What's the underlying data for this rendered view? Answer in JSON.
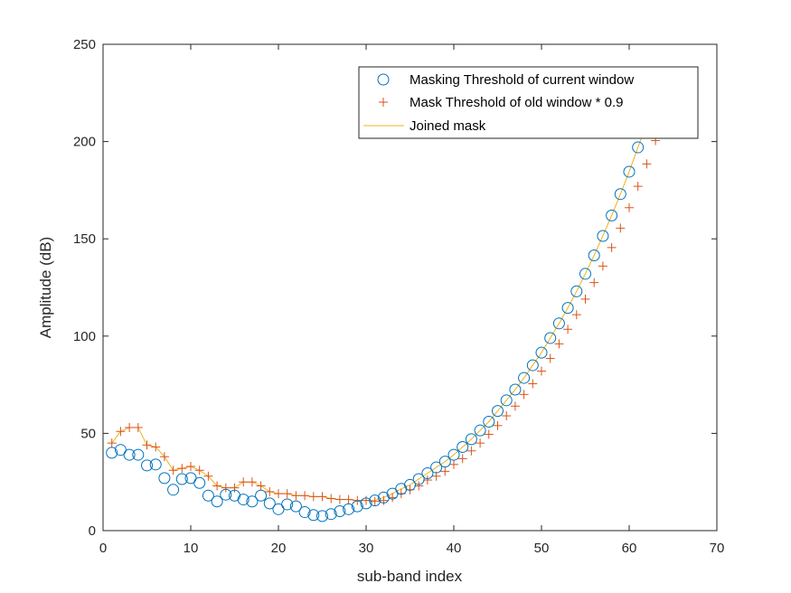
{
  "colors": {
    "circle": "#0072BD",
    "plus": "#D95319",
    "joined": "#EDB120",
    "axis": "#262626"
  },
  "chart_data": {
    "type": "scatter",
    "title": "",
    "xlabel": "sub-band index",
    "ylabel": "Amplitude (dB)",
    "xlim": [
      0,
      70
    ],
    "ylim": [
      0,
      250
    ],
    "xticks": [
      0,
      10,
      20,
      30,
      40,
      50,
      60,
      70
    ],
    "yticks": [
      0,
      50,
      100,
      150,
      200,
      250
    ],
    "grid": false,
    "legend_position": "top-right",
    "series": [
      {
        "name": "Masking Threshold of current window",
        "marker": "circle",
        "x": [
          1,
          2,
          3,
          4,
          5,
          6,
          7,
          8,
          9,
          10,
          11,
          12,
          13,
          14,
          15,
          16,
          17,
          18,
          19,
          20,
          21,
          22,
          23,
          24,
          25,
          26,
          27,
          28,
          29,
          30,
          31,
          32,
          33,
          34,
          35,
          36,
          37,
          38,
          39,
          40,
          41,
          42,
          43,
          44,
          45,
          46,
          47,
          48,
          49,
          50,
          51,
          52,
          53,
          54,
          55,
          56,
          57,
          58,
          59,
          60,
          61,
          62,
          63
        ],
        "y": [
          40,
          41.5,
          39,
          39,
          33.5,
          34,
          27,
          21,
          26.5,
          27,
          24.5,
          18,
          15,
          18.5,
          18,
          16,
          15,
          18,
          14,
          11,
          13.5,
          12.5,
          9.5,
          8,
          7.5,
          8.5,
          10,
          11,
          12.5,
          14,
          15.5,
          17,
          19,
          21.5,
          23.5,
          26.5,
          29.5,
          32.5,
          35.5,
          39,
          43,
          47,
          51.5,
          56,
          61.5,
          67,
          72.5,
          78.5,
          85,
          91.5,
          99,
          106.5,
          114.5,
          123,
          132,
          141.5,
          151.5,
          162,
          173,
          184.5,
          197,
          209,
          222
        ]
      },
      {
        "name": "Mask Threshold of old window * 0.9",
        "marker": "plus",
        "x": [
          1,
          2,
          3,
          4,
          5,
          6,
          7,
          8,
          9,
          10,
          11,
          12,
          13,
          14,
          15,
          16,
          17,
          18,
          19,
          20,
          21,
          22,
          23,
          24,
          25,
          26,
          27,
          28,
          29,
          30,
          31,
          32,
          33,
          34,
          35,
          36,
          37,
          38,
          39,
          40,
          41,
          42,
          43,
          44,
          45,
          46,
          47,
          48,
          49,
          50,
          51,
          52,
          53,
          54,
          55,
          56,
          57,
          58,
          59,
          60,
          61,
          62,
          63
        ],
        "y": [
          45,
          51,
          53,
          53,
          44,
          43,
          38,
          31,
          32,
          33,
          31,
          28,
          23,
          22,
          22,
          25,
          25,
          23,
          20,
          19,
          19,
          18,
          18,
          17.5,
          17.5,
          16.5,
          16,
          16,
          15.5,
          15.5,
          15,
          15.5,
          17,
          19,
          21,
          23,
          26,
          28,
          30.5,
          34,
          37,
          41,
          45,
          49.5,
          54,
          59,
          64,
          70,
          75.5,
          82,
          88.5,
          96,
          103.5,
          111,
          119,
          127.5,
          136,
          145.5,
          155.5,
          166,
          177,
          188.5,
          200.5
        ]
      },
      {
        "name": "Joined mask",
        "marker": "line",
        "x": [
          1,
          2,
          3,
          4,
          5,
          6,
          7,
          8,
          9,
          10,
          11,
          12,
          13,
          14,
          15,
          16,
          17,
          18,
          19,
          20,
          21,
          22,
          23,
          24,
          25,
          26,
          27,
          28,
          29,
          30,
          31,
          32,
          33,
          34,
          35,
          36,
          37,
          38,
          39,
          40,
          41,
          42,
          43,
          44,
          45,
          46,
          47,
          48,
          49,
          50,
          51,
          52,
          53,
          54,
          55,
          56,
          57,
          58,
          59,
          60,
          61,
          62,
          63
        ],
        "y": [
          45,
          51,
          53,
          53,
          44,
          43,
          38,
          31,
          32,
          33,
          31,
          28,
          23,
          22,
          22,
          25,
          25,
          23,
          20,
          19,
          19,
          18,
          18,
          17.5,
          17.5,
          16.5,
          16,
          16,
          15.5,
          15.5,
          15.5,
          17,
          19,
          21.5,
          23.5,
          26.5,
          29.5,
          32.5,
          35.5,
          39,
          43,
          47,
          51.5,
          56,
          61.5,
          67,
          72.5,
          78.5,
          85,
          91.5,
          99,
          106.5,
          114.5,
          123,
          132,
          141.5,
          151.5,
          162,
          173,
          184.5,
          197,
          209,
          222
        ]
      }
    ]
  }
}
